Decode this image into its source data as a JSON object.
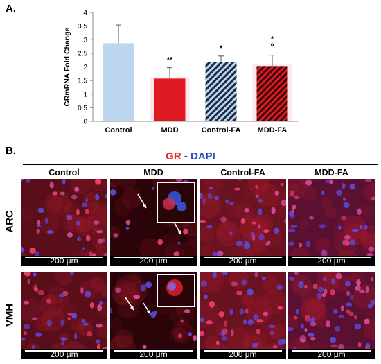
{
  "panel_a_label": "A.",
  "panel_b_label": "B.",
  "chart_data": {
    "type": "bar",
    "ylabel": "GRmRNA Fold Change",
    "ylim": [
      0,
      4
    ],
    "yticks": [
      "0",
      "0.5",
      "1",
      "1.5",
      "2",
      "2.5",
      "3",
      "3.5",
      "4"
    ],
    "categories": [
      "Control",
      "MDD",
      "Control-FA",
      "MDD-FA"
    ],
    "values": [
      2.87,
      1.57,
      2.17,
      2.03
    ],
    "errors": [
      0.67,
      0.4,
      0.23,
      0.4
    ],
    "annotations": [
      "",
      "**",
      "*",
      "*\n°"
    ],
    "fills": [
      "#bcd6ee",
      "#e01a22",
      "hatch-blue",
      "hatch-red"
    ],
    "grid": false
  },
  "stain": {
    "gr": "GR",
    "sep": "-",
    "dapi": "DAPI"
  },
  "columns": [
    "Control",
    "MDD",
    "Control-FA",
    "MDD-FA"
  ],
  "rows": [
    "ARC",
    "VMH"
  ],
  "scale_label": "200 μm",
  "colors": {
    "gr": "#e8282b",
    "dapi": "#2a4fc4",
    "control_bar": "#bcd6ee",
    "mdd_bar": "#e01a22"
  }
}
